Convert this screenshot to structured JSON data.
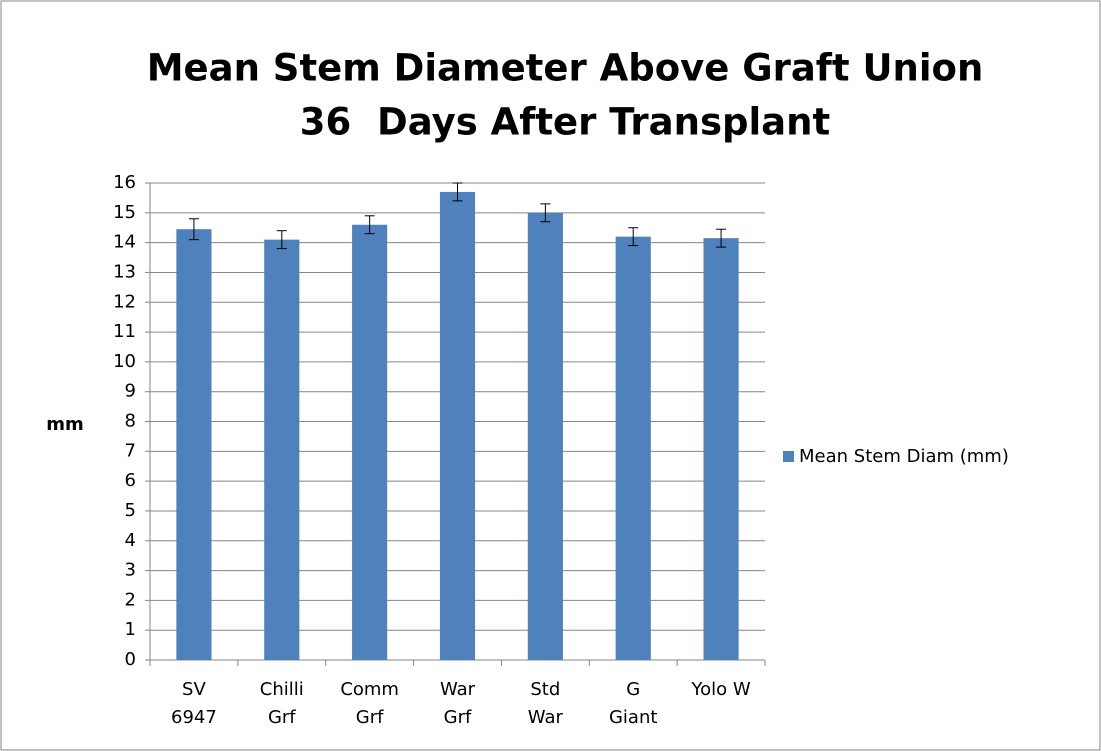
{
  "chart_data": {
    "type": "bar",
    "title": [
      "Mean Stem Diameter Above Graft Union",
      "36  Days After Transplant"
    ],
    "y_label": "mm",
    "categories": [
      "SV 6947",
      "Chilli Grf",
      "Comm Grf",
      "War Grf",
      "Std War",
      "G Giant",
      "Yolo W"
    ],
    "series": [
      {
        "name": "Mean Stem Diam (mm)",
        "color": "#4f81bd",
        "values": [
          14.45,
          14.1,
          14.6,
          15.7,
          15.0,
          14.2,
          14.15
        ],
        "errors": [
          0.35,
          0.3,
          0.3,
          0.3,
          0.3,
          0.3,
          0.3
        ]
      }
    ],
    "ylim": [
      0,
      16
    ],
    "yticks": [
      0,
      1,
      2,
      3,
      4,
      5,
      6,
      7,
      8,
      9,
      10,
      11,
      12,
      13,
      14,
      15,
      16
    ],
    "grid": true,
    "legend": "right"
  }
}
